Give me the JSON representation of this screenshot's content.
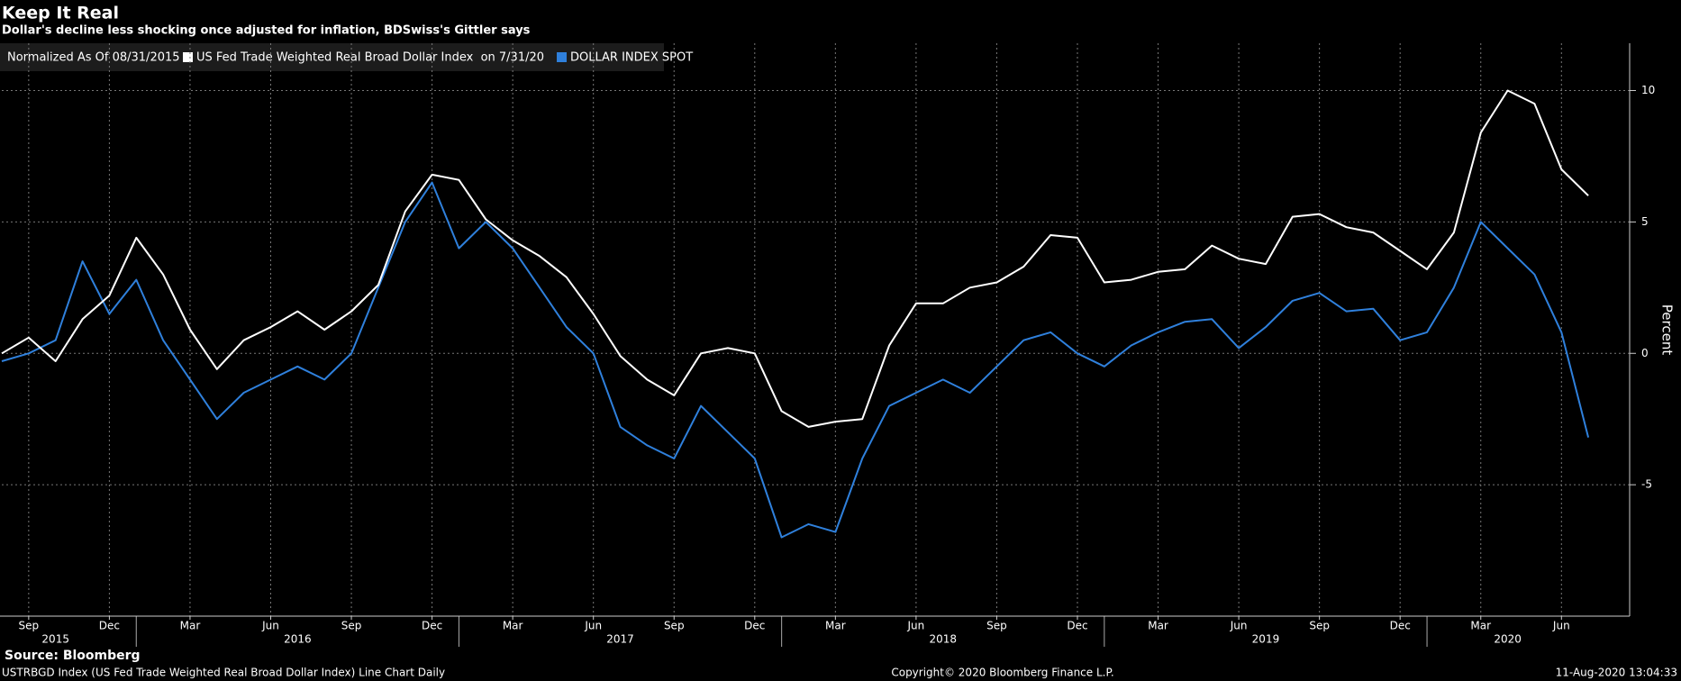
{
  "chart_data": {
    "type": "line",
    "title": "Keep It Real",
    "subtitle": "Dollar's decline less shocking once adjusted for inflation, BDSwiss's Gittler says",
    "legend_note": "Normalized As Of 08/31/2015",
    "x": [
      "2015-08",
      "2015-09",
      "2015-10",
      "2015-11",
      "2015-12",
      "2016-01",
      "2016-02",
      "2016-03",
      "2016-04",
      "2016-05",
      "2016-06",
      "2016-07",
      "2016-08",
      "2016-09",
      "2016-10",
      "2016-11",
      "2016-12",
      "2017-01",
      "2017-02",
      "2017-03",
      "2017-04",
      "2017-05",
      "2017-06",
      "2017-07",
      "2017-08",
      "2017-09",
      "2017-10",
      "2017-11",
      "2017-12",
      "2018-01",
      "2018-02",
      "2018-03",
      "2018-04",
      "2018-05",
      "2018-06",
      "2018-07",
      "2018-08",
      "2018-09",
      "2018-10",
      "2018-11",
      "2018-12",
      "2019-01",
      "2019-02",
      "2019-03",
      "2019-04",
      "2019-05",
      "2019-06",
      "2019-07",
      "2019-08",
      "2019-09",
      "2019-10",
      "2019-11",
      "2019-12",
      "2020-01",
      "2020-02",
      "2020-03",
      "2020-04",
      "2020-05",
      "2020-06",
      "2020-07"
    ],
    "series": [
      {
        "name": "US Fed Trade Weighted Real Broad Dollar Index  on 7/31/20",
        "color": "#ffffff",
        "values": [
          0,
          0.6,
          -0.3,
          1.3,
          2.2,
          4.4,
          3.0,
          0.9,
          -0.6,
          0.5,
          1.0,
          1.6,
          0.9,
          1.6,
          2.6,
          5.4,
          6.8,
          6.6,
          5.1,
          4.3,
          3.7,
          2.9,
          1.5,
          -0.1,
          -1.0,
          -1.6,
          0.0,
          0.2,
          0.0,
          -2.2,
          -2.8,
          -2.6,
          -2.5,
          0.3,
          1.9,
          1.9,
          2.5,
          2.7,
          3.3,
          4.5,
          4.4,
          2.7,
          2.8,
          3.1,
          3.2,
          4.1,
          3.6,
          3.4,
          5.2,
          5.3,
          4.8,
          4.6,
          3.9,
          3.2,
          4.6,
          8.4,
          10.0,
          9.5,
          7.0,
          6.0
        ]
      },
      {
        "name": "DOLLAR INDEX SPOT",
        "color": "#2f80dc",
        "values": [
          -0.3,
          0.0,
          0.5,
          3.5,
          1.5,
          2.8,
          0.5,
          -1.0,
          -2.5,
          -1.5,
          -1.0,
          -0.5,
          -1.0,
          0.0,
          2.5,
          5.0,
          6.5,
          4.0,
          5.0,
          4.0,
          2.5,
          1.0,
          0.0,
          -2.8,
          -3.5,
          -4.0,
          -2.0,
          -3.0,
          -4.0,
          -7.0,
          -6.5,
          -6.8,
          -4.0,
          -2.0,
          -1.5,
          -1.0,
          -1.5,
          -0.5,
          0.5,
          0.8,
          0.0,
          -0.5,
          0.3,
          0.8,
          1.2,
          1.3,
          0.2,
          1.0,
          2.0,
          2.3,
          1.6,
          1.7,
          0.5,
          0.8,
          2.5,
          5.0,
          4.0,
          3.0,
          0.8,
          -3.2
        ]
      }
    ],
    "xlim": [
      "2015-08",
      "2020-08"
    ],
    "ylim": [
      -10,
      11.8
    ],
    "yticks": [
      -5,
      0,
      5,
      10
    ],
    "xticks": [
      {
        "value": "2015-09",
        "label": "Sep"
      },
      {
        "value": "2015-12",
        "label": "Dec"
      },
      {
        "value": "2016-03",
        "label": "Mar"
      },
      {
        "value": "2016-06",
        "label": "Jun"
      },
      {
        "value": "2016-09",
        "label": "Sep"
      },
      {
        "value": "2016-12",
        "label": "Dec"
      },
      {
        "value": "2017-03",
        "label": "Mar"
      },
      {
        "value": "2017-06",
        "label": "Jun"
      },
      {
        "value": "2017-09",
        "label": "Sep"
      },
      {
        "value": "2017-12",
        "label": "Dec"
      },
      {
        "value": "2018-03",
        "label": "Mar"
      },
      {
        "value": "2018-06",
        "label": "Jun"
      },
      {
        "value": "2018-09",
        "label": "Sep"
      },
      {
        "value": "2018-12",
        "label": "Dec"
      },
      {
        "value": "2019-03",
        "label": "Mar"
      },
      {
        "value": "2019-06",
        "label": "Jun"
      },
      {
        "value": "2019-09",
        "label": "Sep"
      },
      {
        "value": "2019-12",
        "label": "Dec"
      },
      {
        "value": "2020-03",
        "label": "Mar"
      },
      {
        "value": "2020-06",
        "label": "Jun"
      }
    ],
    "year_labels": [
      {
        "value": "2015-10",
        "label": "2015"
      },
      {
        "value": "2016-07",
        "label": "2016"
      },
      {
        "value": "2017-07",
        "label": "2017"
      },
      {
        "value": "2018-07",
        "label": "2018"
      },
      {
        "value": "2019-07",
        "label": "2019"
      },
      {
        "value": "2020-04",
        "label": "2020"
      }
    ],
    "y_label": "Percent",
    "grid": true,
    "source": "Source: Bloomberg"
  },
  "footer": {
    "left": "USTRBGD Index (US Fed Trade Weighted Real Broad Dollar Index) Line Chart  Daily",
    "center": "Copyright© 2020 Bloomberg Finance L.P.",
    "right": "11-Aug-2020 13:04:33"
  }
}
